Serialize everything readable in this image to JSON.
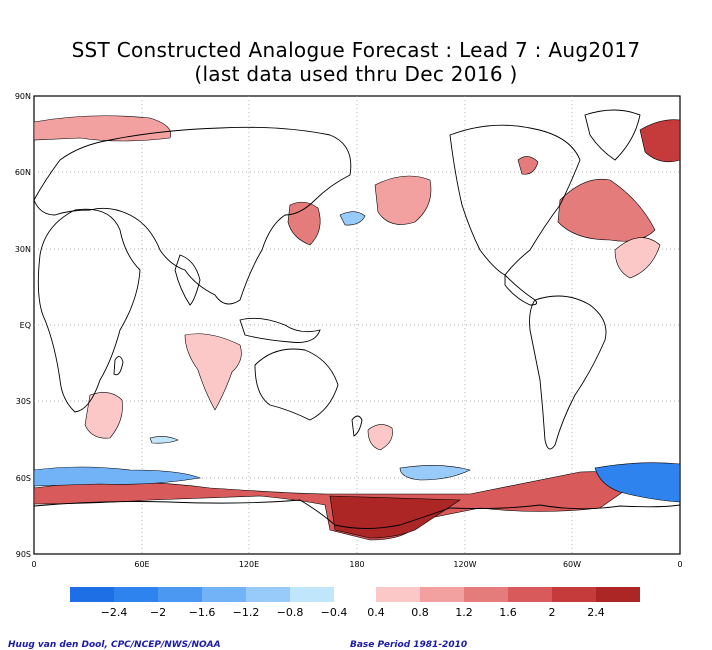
{
  "title": {
    "line1": "SST Constructed Analogue Forecast : Lead 7 : Aug2017",
    "line2": "(last data used thru Dec 2016 )"
  },
  "axes": {
    "lat_labels": [
      "90N",
      "60N",
      "30N",
      "EQ",
      "30S",
      "60S",
      "90S"
    ],
    "lon_labels": [
      "0",
      "60E",
      "120E",
      "180",
      "120W",
      "60W",
      "0"
    ]
  },
  "colorbar": {
    "negative_colors": [
      "#1e6fe6",
      "#2f83ee",
      "#4b98f3",
      "#72b2f6",
      "#98cbf9",
      "#bfe6fb"
    ],
    "positive_colors": [
      "#fbc7c7",
      "#f2a0a0",
      "#e57c7c",
      "#d85a5a",
      "#c53a3a",
      "#ac2626"
    ],
    "negative_labels": [
      "-2.4",
      "-2",
      "-1.6",
      "-1.2",
      "-0.8",
      "-0.4"
    ],
    "positive_labels": [
      "0.4",
      "0.8",
      "1.2",
      "1.6",
      "2",
      "2.4"
    ]
  },
  "footer": {
    "credit": "Huug van den Dool, CPC/NCEP/NWS/NOAA",
    "base_period": "Base Period 1981-2010"
  }
}
